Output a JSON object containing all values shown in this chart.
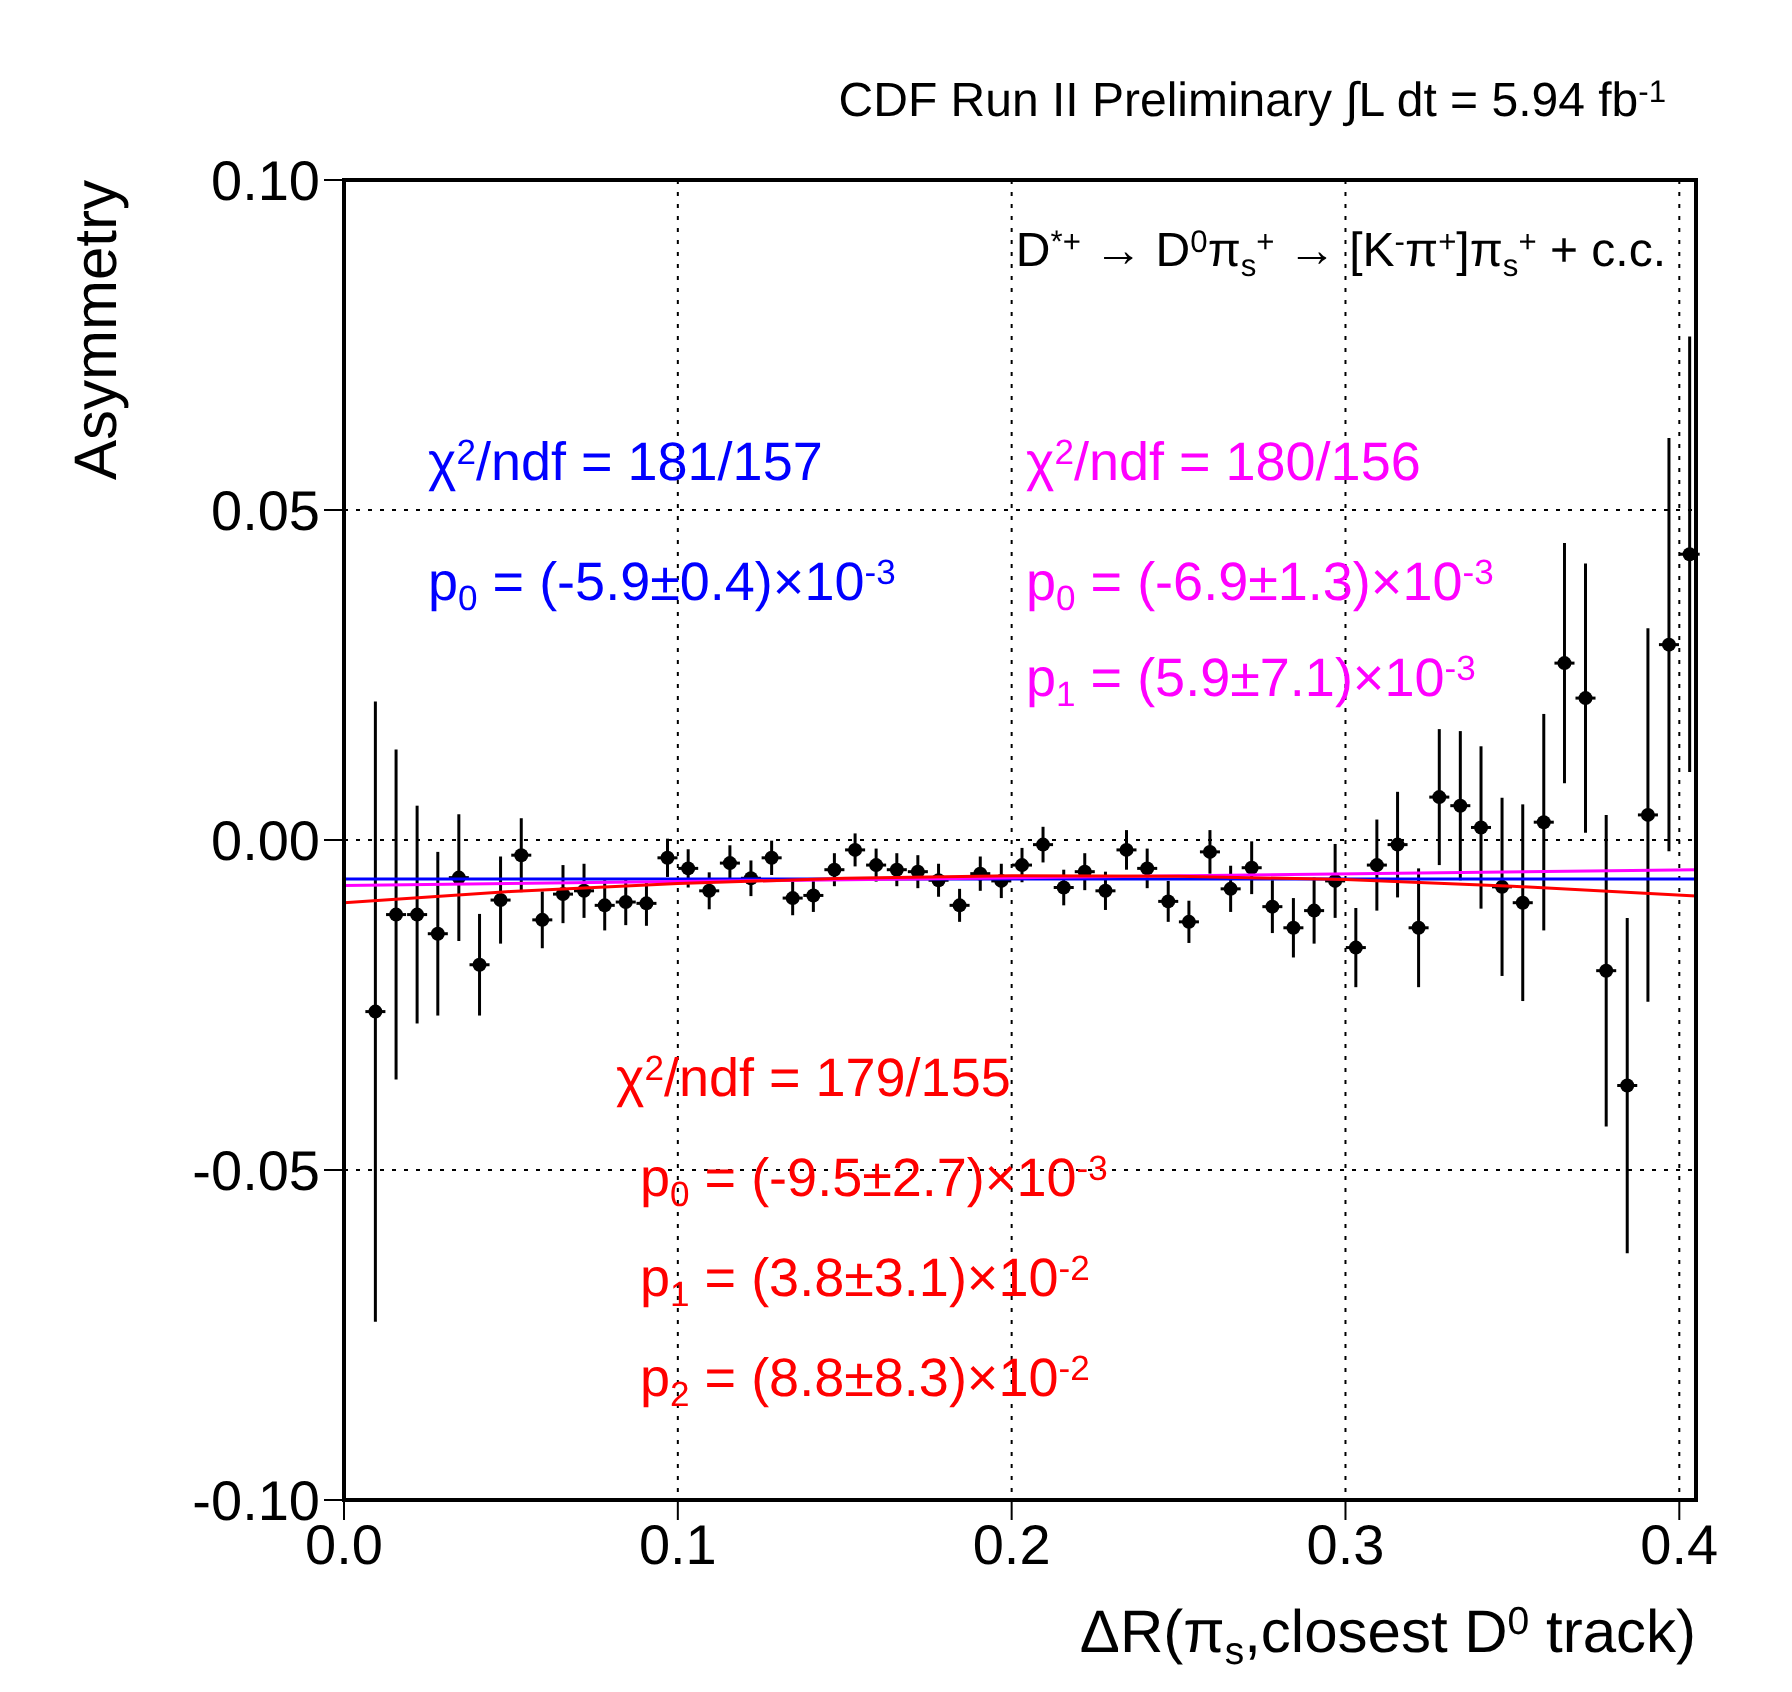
{
  "chart_data": {
    "type": "scatter",
    "title": "CDF Run II Preliminary ∫L dt = 5.94 fb$^{-1}$",
    "xlabel": "ΔR(π$_{s}$,closest D$^{0}$ track)",
    "ylabel": "Asymmetry",
    "annotations": [
      "D$^{*+}$ → D$^{0}$π$_{s}$$^{+}$ → [K$^{-}$π$^{+}$]π$_{s}$$^{+}$ + c.c.",
      "χ$^{2}$/ndf = 181/157",
      "p$_{0}$ = (-5.9±0.4)×10$^{-3}$",
      "χ$^{2}$/ndf = 180/156",
      "p$_{0}$ = (-6.9±1.3)×10$^{-3}$",
      "p$_{1}$ = (5.9±7.1)×10$^{-3}$",
      "χ$^{2}$/ndf = 179/155",
      "p$_{0}$ = (-9.5±2.7)×10$^{-3}$",
      "p$_{1}$ = (3.8±3.1)×10$^{-2}$",
      "p$_{2}$ = (8.8±8.3)×10$^{-2}$"
    ],
    "xlim": [
      0,
      0.405
    ],
    "ylim": [
      -0.1,
      0.1
    ],
    "xticks": [
      {
        "value": 0,
        "label": "0.0"
      },
      {
        "value": 0.1,
        "label": "0.1"
      },
      {
        "value": 0.2,
        "label": "0.2"
      },
      {
        "value": 0.3,
        "label": "0.3"
      },
      {
        "value": 0.4,
        "label": "0.4"
      }
    ],
    "yticks": [
      {
        "value": -0.1,
        "label": "-0.10"
      },
      {
        "value": -0.05,
        "label": "-0.05"
      },
      {
        "value": 0,
        "label": "0.00"
      },
      {
        "value": 0.05,
        "label": "0.05"
      },
      {
        "value": 0.1,
        "label": "0.10"
      }
    ],
    "grid": true,
    "legend": false,
    "marker": "circle",
    "series": [
      {
        "color": "#000000",
        "x": [
          0.0094,
          0.0156,
          0.0219,
          0.0281,
          0.0344,
          0.0406,
          0.0469,
          0.0531,
          0.0594,
          0.0656,
          0.0719,
          0.0781,
          0.0844,
          0.0906,
          0.0969,
          0.1031,
          0.1094,
          0.1156,
          0.1219,
          0.1281,
          0.1344,
          0.1406,
          0.1469,
          0.1531,
          0.1594,
          0.1656,
          0.1719,
          0.1781,
          0.1844,
          0.1906,
          0.1969,
          0.2031,
          0.2094,
          0.2156,
          0.2219,
          0.2281,
          0.2344,
          0.2406,
          0.2469,
          0.2531,
          0.2594,
          0.2656,
          0.2719,
          0.2781,
          0.2844,
          0.2906,
          0.2969,
          0.3031,
          0.3094,
          0.3156,
          0.3219,
          0.3281,
          0.3344,
          0.3406,
          0.3469,
          0.3531,
          0.3594,
          0.3656,
          0.3719,
          0.3781,
          0.3844,
          0.3906,
          0.3969,
          0.4031
        ],
        "values": [
          -0.026,
          -0.0113,
          -0.0113,
          -0.0142,
          -0.0057,
          -0.0189,
          -0.0091,
          -0.0023,
          -0.0121,
          -0.0082,
          -0.0077,
          -0.0099,
          -0.0094,
          -0.0096,
          -0.0027,
          -0.0043,
          -0.0077,
          -0.0035,
          -0.0058,
          -0.0027,
          -0.0088,
          -0.0084,
          -0.0045,
          -0.0015,
          -0.0038,
          -0.0045,
          -0.0048,
          -0.0061,
          -0.0099,
          -0.0051,
          -0.0062,
          -0.0038,
          -0.0007,
          -0.0072,
          -0.0048,
          -0.0077,
          -0.0015,
          -0.0043,
          -0.0093,
          -0.0124,
          -0.0018,
          -0.0074,
          -0.0042,
          -0.0101,
          -0.0133,
          -0.0107,
          -0.0062,
          -0.0163,
          -0.0038,
          -0.0007,
          -0.0133,
          0.0065,
          0.0052,
          0.0019,
          -0.0071,
          -0.0095,
          0.0027,
          0.0268,
          0.0215,
          -0.0198,
          -0.0372,
          0.0038,
          0.0296,
          0.0433
        ],
        "errors": [
          0.047,
          0.025,
          0.0165,
          0.0124,
          0.0096,
          0.0077,
          0.0066,
          0.0056,
          0.0043,
          0.0044,
          0.0041,
          0.0038,
          0.0035,
          0.0034,
          0.0029,
          0.0029,
          0.0028,
          0.0027,
          0.0027,
          0.0026,
          0.0026,
          0.0025,
          0.0025,
          0.0025,
          0.0025,
          0.0025,
          0.0025,
          0.0025,
          0.0025,
          0.0026,
          0.0026,
          0.0026,
          0.0027,
          0.0027,
          0.0028,
          0.0029,
          0.003,
          0.003,
          0.0031,
          0.0032,
          0.0033,
          0.0035,
          0.004,
          0.004,
          0.0045,
          0.005,
          0.0056,
          0.006,
          0.0069,
          0.008,
          0.009,
          0.0103,
          0.0113,
          0.0123,
          0.0135,
          0.0149,
          0.0164,
          0.0182,
          0.0204,
          0.0236,
          0.0254,
          0.0283,
          0.0313,
          0.033
        ],
        "xerrors": [
          0.003,
          0.003,
          0.003,
          0.003,
          0.003,
          0.003,
          0.003,
          0.003,
          0.003,
          0.003,
          0.003,
          0.003,
          0.003,
          0.003,
          0.003,
          0.003,
          0.003,
          0.003,
          0.003,
          0.003,
          0.003,
          0.003,
          0.003,
          0.003,
          0.003,
          0.003,
          0.003,
          0.003,
          0.003,
          0.003,
          0.003,
          0.003,
          0.003,
          0.003,
          0.003,
          0.003,
          0.003,
          0.003,
          0.003,
          0.003,
          0.003,
          0.003,
          0.003,
          0.003,
          0.003,
          0.003,
          0.003,
          0.003,
          0.003,
          0.003,
          0.003,
          0.003,
          0.003,
          0.003,
          0.003,
          0.003,
          0.003,
          0.003,
          0.003,
          0.003,
          0.003,
          0.003,
          0.003,
          0.003
        ]
      },
      {
        "type": "line",
        "marker": "none",
        "color": "#0000ff",
        "x": [
          0,
          0.405
        ],
        "values": [
          -0.0059,
          -0.0059
        ]
      },
      {
        "type": "line",
        "marker": "none",
        "color": "#ff00ff",
        "x": [
          0,
          0.405
        ],
        "values": [
          -0.0069,
          -0.0045
        ]
      },
      {
        "type": "line",
        "marker": "none",
        "color": "#ff0000",
        "x": [
          0,
          0.05,
          0.1,
          0.15,
          0.2,
          0.25,
          0.3,
          0.35,
          0.405
        ],
        "values": [
          -0.0095,
          -0.0078,
          -0.0066,
          -0.0058,
          -0.0054,
          -0.0055,
          -0.006,
          -0.007,
          -0.0085
        ]
      }
    ]
  }
}
